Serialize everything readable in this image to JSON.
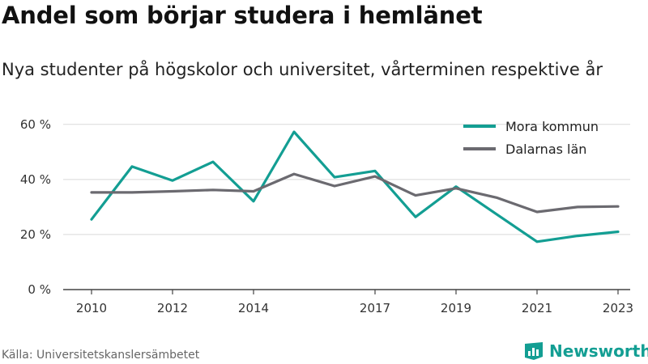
{
  "title": "Andel som börjar studera i hemlänet",
  "subtitle": "Nya studenter på högskolor och universitet, vårterminen respektive år",
  "source": "Källa: Universitetskanslersämbetet",
  "brand": {
    "name": "Newsworthy",
    "icon": "newsworthy-logo-icon",
    "color": "#139e93"
  },
  "chart_data": {
    "type": "line",
    "title": "Andel som börjar studera i hemlänet",
    "subtitle": "Nya studenter på högskolor och universitet, vårterminen respektive år",
    "x": [
      2010,
      2011,
      2012,
      2013,
      2014,
      2015,
      2016,
      2017,
      2018,
      2019,
      2020,
      2021,
      2022,
      2023
    ],
    "x_tick_labels": [
      "2010",
      "2012",
      "2014",
      "2017",
      "2019",
      "2021",
      "2023"
    ],
    "y_ticks": [
      0,
      20,
      40,
      60
    ],
    "y_tick_labels": [
      "0 %",
      "20 %",
      "40 %",
      "60 %"
    ],
    "ylim": [
      0,
      62
    ],
    "xlim": [
      2009.3,
      2023.3
    ],
    "grid": "horizontal",
    "legend_position": "top-right",
    "series": [
      {
        "name": "Mora kommun",
        "color": "#139e93",
        "values": [
          25.5,
          44.7,
          39.6,
          46.4,
          32.1,
          57.3,
          40.8,
          43.1,
          26.4,
          37.4,
          27.4,
          17.4,
          19.5,
          21.0
        ]
      },
      {
        "name": "Dalarnas län",
        "color": "#6b6a70",
        "values": [
          35.3,
          35.3,
          35.7,
          36.2,
          35.7,
          42.0,
          37.6,
          41.1,
          34.2,
          36.8,
          33.4,
          28.2,
          30.0,
          30.2
        ]
      }
    ],
    "axis_color": "#444444",
    "grid_color": "#d9d9d9"
  }
}
